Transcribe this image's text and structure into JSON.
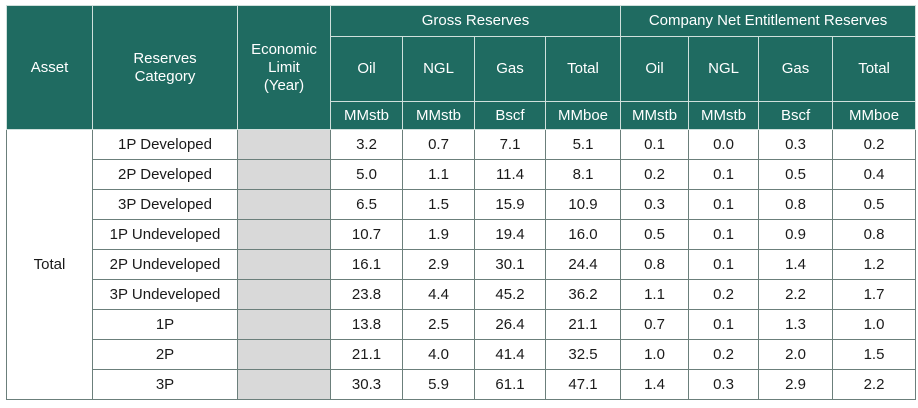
{
  "headers": {
    "asset": "Asset",
    "category": "Reserves Category",
    "economic_limit": "Economic Limit (Year)",
    "gross_group": "Gross Reserves",
    "net_group": "Company Net Entitlement Reserves",
    "columns": [
      "Oil",
      "NGL",
      "Gas",
      "Total",
      "Oil",
      "NGL",
      "Gas",
      "Total"
    ],
    "units": [
      "MMstb",
      "MMstb",
      "Bscf",
      "MMboe",
      "MMstb",
      "MMstb",
      "Bscf",
      "MMboe"
    ]
  },
  "asset_name": "Total",
  "rows": [
    {
      "category": "1P Developed",
      "values": [
        "3.2",
        "0.7",
        "7.1",
        "5.1",
        "0.1",
        "0.0",
        "0.3",
        "0.2"
      ]
    },
    {
      "category": "2P Developed",
      "values": [
        "5.0",
        "1.1",
        "11.4",
        "8.1",
        "0.2",
        "0.1",
        "0.5",
        "0.4"
      ]
    },
    {
      "category": "3P Developed",
      "values": [
        "6.5",
        "1.5",
        "15.9",
        "10.9",
        "0.3",
        "0.1",
        "0.8",
        "0.5"
      ]
    },
    {
      "category": "1P Undeveloped",
      "values": [
        "10.7",
        "1.9",
        "19.4",
        "16.0",
        "0.5",
        "0.1",
        "0.9",
        "0.8"
      ]
    },
    {
      "category": "2P Undeveloped",
      "values": [
        "16.1",
        "2.9",
        "30.1",
        "24.4",
        "0.8",
        "0.1",
        "1.4",
        "1.2"
      ]
    },
    {
      "category": "3P Undeveloped",
      "values": [
        "23.8",
        "4.4",
        "45.2",
        "36.2",
        "1.1",
        "0.2",
        "2.2",
        "1.7"
      ]
    },
    {
      "category": "1P",
      "values": [
        "13.8",
        "2.5",
        "26.4",
        "21.1",
        "0.7",
        "0.1",
        "1.3",
        "1.0"
      ]
    },
    {
      "category": "2P",
      "values": [
        "21.1",
        "4.0",
        "41.4",
        "32.5",
        "1.0",
        "0.2",
        "2.0",
        "1.5"
      ]
    },
    {
      "category": "3P",
      "values": [
        "30.3",
        "5.9",
        "61.1",
        "47.1",
        "1.4",
        "0.3",
        "2.9",
        "2.2"
      ]
    }
  ],
  "colors": {
    "header_bg": "#1f6b61",
    "header_text": "#ffffff",
    "economic_limit_cell": "#d9d9d9",
    "grid": "#6b7f7b"
  }
}
